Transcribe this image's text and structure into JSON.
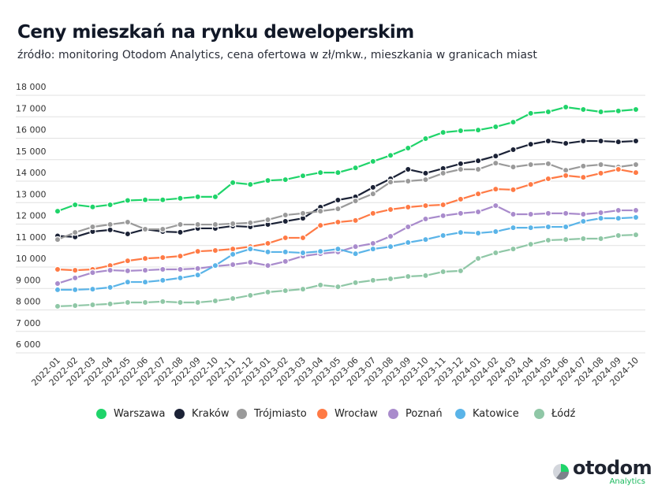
{
  "title": "Ceny mieszkań na rynku deweloperskim",
  "subtitle": "źródło: monitoring Otodom Analytics, cena ofertowa w zł/mkw., mieszkania w granicach miast",
  "logo": {
    "name": "otodom",
    "sub": "Analytics"
  },
  "chart_data": {
    "type": "line",
    "title": "Ceny mieszkań na rynku deweloperskim",
    "ylim": [
      6000,
      18000
    ],
    "yticks": [
      6000,
      7000,
      8000,
      9000,
      10000,
      11000,
      12000,
      13000,
      14000,
      15000,
      16000,
      17000,
      18000
    ],
    "ytick_labels": [
      "6 000",
      "7 000",
      "8 000",
      "9 000",
      "10 000",
      "11 000",
      "12 000",
      "13 000",
      "14 000",
      "15 000",
      "16 000",
      "17 000",
      "18 000"
    ],
    "grid": true,
    "legend_position": "bottom",
    "x": [
      "2022-01",
      "2022-02",
      "2022-03",
      "2022-04",
      "2022-05",
      "2022-06",
      "2022-07",
      "2022-08",
      "2022-09",
      "2022-10",
      "2022-11",
      "2022-12",
      "2023-01",
      "2023-02",
      "2023-03",
      "2023-04",
      "2023-05",
      "2023-06",
      "2023-07",
      "2023-08",
      "2023-09",
      "2023-10",
      "2023-11",
      "2023-12",
      "2024-01",
      "2024-02",
      "2024-03",
      "2024-04",
      "2024-05",
      "2024-06",
      "2024-07",
      "2024-08",
      "2024-09",
      "2024-10"
    ],
    "series": [
      {
        "name": "Warszawa",
        "color": "#1fd46a",
        "values": [
          12600,
          12900,
          12800,
          12900,
          13100,
          13130,
          13130,
          13200,
          13270,
          13270,
          13930,
          13850,
          14030,
          14070,
          14250,
          14400,
          14400,
          14620,
          14920,
          15200,
          15540,
          15980,
          16270,
          16350,
          16380,
          16530,
          16750,
          17160,
          17230,
          17450,
          17340,
          17230,
          17270,
          17340
        ]
      },
      {
        "name": "Kraków",
        "color": "#1b2236",
        "values": [
          11450,
          11400,
          11650,
          11730,
          11540,
          11760,
          11650,
          11620,
          11800,
          11800,
          11910,
          11870,
          11980,
          12130,
          12270,
          12790,
          13120,
          13270,
          13710,
          14110,
          14550,
          14370,
          14590,
          14810,
          14950,
          15170,
          15470,
          15720,
          15870,
          15760,
          15870,
          15870,
          15830,
          15870
        ]
      },
      {
        "name": "Trójmiasto",
        "color": "#9a9a9a",
        "values": [
          11280,
          11610,
          11870,
          11980,
          12090,
          11760,
          11760,
          11980,
          11980,
          11980,
          12020,
          12060,
          12200,
          12420,
          12500,
          12600,
          12710,
          13080,
          13410,
          13960,
          14000,
          14070,
          14370,
          14550,
          14550,
          14840,
          14660,
          14770,
          14810,
          14510,
          14700,
          14770,
          14660,
          14770
        ]
      },
      {
        "name": "Wrocław",
        "color": "#ff7a45",
        "values": [
          9890,
          9850,
          9890,
          10070,
          10290,
          10400,
          10440,
          10510,
          10730,
          10770,
          10840,
          10950,
          11100,
          11360,
          11360,
          11940,
          12090,
          12170,
          12500,
          12680,
          12790,
          12860,
          12900,
          13160,
          13410,
          13630,
          13600,
          13850,
          14110,
          14260,
          14180,
          14370,
          14550,
          14400
        ]
      },
      {
        "name": "Poznań",
        "color": "#a98bcc",
        "values": [
          9230,
          9490,
          9740,
          9850,
          9820,
          9850,
          9890,
          9890,
          9930,
          10040,
          10110,
          10220,
          10070,
          10260,
          10510,
          10620,
          10700,
          10950,
          11100,
          11430,
          11870,
          12240,
          12390,
          12500,
          12570,
          12860,
          12460,
          12460,
          12500,
          12500,
          12460,
          12530,
          12640,
          12640
        ]
      },
      {
        "name": "Katowice",
        "color": "#5ab4e8",
        "values": [
          8940,
          8940,
          8970,
          9050,
          9300,
          9300,
          9380,
          9490,
          9630,
          10070,
          10590,
          10840,
          10700,
          10700,
          10660,
          10730,
          10840,
          10620,
          10840,
          10950,
          11140,
          11280,
          11470,
          11610,
          11580,
          11650,
          11830,
          11830,
          11870,
          11870,
          12130,
          12270,
          12270,
          12310
        ]
      },
      {
        "name": "Łódź",
        "color": "#8fc7a6",
        "values": [
          8170,
          8200,
          8240,
          8280,
          8350,
          8350,
          8390,
          8350,
          8350,
          8420,
          8530,
          8680,
          8830,
          8900,
          8970,
          9160,
          9080,
          9270,
          9380,
          9450,
          9560,
          9600,
          9780,
          9820,
          10400,
          10660,
          10840,
          11060,
          11250,
          11280,
          11320,
          11320,
          11470,
          11500
        ]
      }
    ]
  }
}
